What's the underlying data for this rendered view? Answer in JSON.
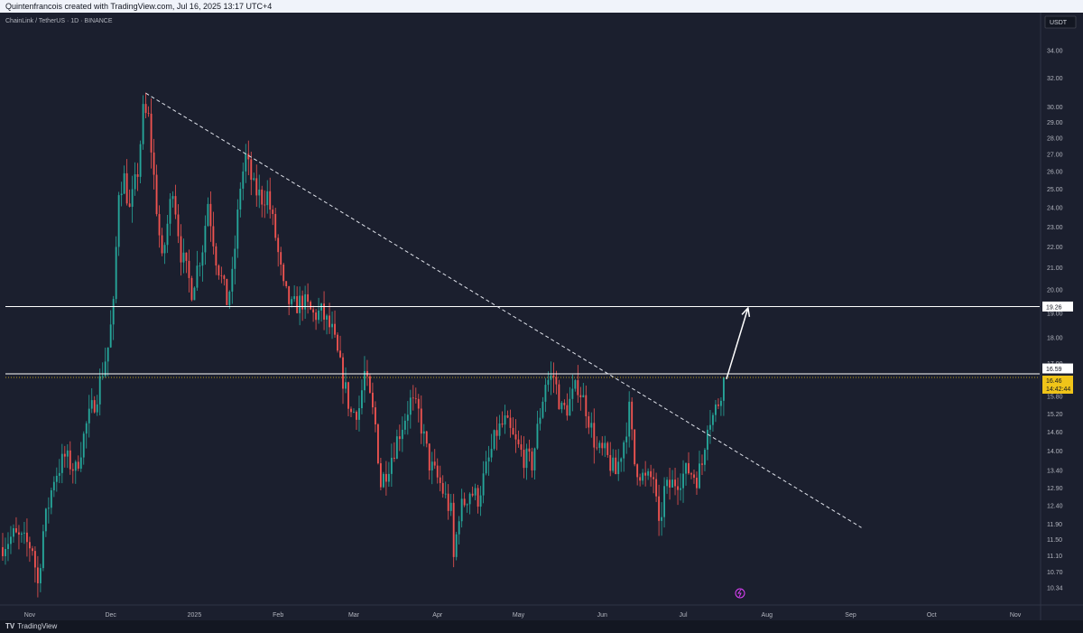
{
  "header": {
    "creator_text": "Quintenfrancois created with TradingView.com, Jul 16, 2025 13:17 UTC+4"
  },
  "symbol_title": "ChainLink / TetherUS · 1D · BINANCE",
  "footer": {
    "logo_mark": "TV",
    "logo_text": "TradingView"
  },
  "colors": {
    "background": "#1b1f2e",
    "up_candle": "#26a69a",
    "down_candle": "#ef5350",
    "price_badge": "#f0c419",
    "line": "#ffffff"
  },
  "chart_data": {
    "type": "candlestick",
    "title": "ChainLink / TetherUS · 1D · BINANCE",
    "currency_label": "USDT",
    "y_scale": "log",
    "ylim": [
      10.0,
      36.5
    ],
    "y_ticks": [
      "34.00",
      "32.00",
      "30.00",
      "29.00",
      "28.00",
      "27.00",
      "26.00",
      "25.00",
      "24.00",
      "23.00",
      "22.00",
      "21.00",
      "20.00",
      "19.00",
      "18.00",
      "17.00",
      "15.80",
      "15.20",
      "14.60",
      "14.00",
      "13.40",
      "12.90",
      "12.40",
      "11.90",
      "11.50",
      "11.10",
      "10.70",
      "10.34"
    ],
    "x_ticks": [
      "Nov",
      "Dec",
      "2025",
      "Feb",
      "Mar",
      "Apr",
      "May",
      "Jun",
      "Jul",
      "Aug",
      "Sep",
      "Oct",
      "Nov"
    ],
    "x_tick_dates": [
      "2024-11-01",
      "2024-12-01",
      "2025-01-01",
      "2025-02-01",
      "2025-03-01",
      "2025-04-01",
      "2025-05-01",
      "2025-06-01",
      "2025-07-01",
      "2025-08-01",
      "2025-09-01",
      "2025-10-01",
      "2025-11-01"
    ],
    "xlim": [
      "2024-10-21",
      "2025-11-10"
    ],
    "price_path": [
      [
        "2024-10-21",
        11.3
      ],
      [
        "2024-10-26",
        11.6
      ],
      [
        "2024-11-02",
        11.3
      ],
      [
        "2024-11-04",
        10.4
      ],
      [
        "2024-11-06",
        11.7
      ],
      [
        "2024-11-10",
        13.2
      ],
      [
        "2024-11-14",
        13.8
      ],
      [
        "2024-11-18",
        13.4
      ],
      [
        "2024-11-22",
        14.8
      ],
      [
        "2024-11-26",
        15.9
      ],
      [
        "2024-11-30",
        17.6
      ],
      [
        "2024-12-02",
        19.2
      ],
      [
        "2024-12-04",
        25.0
      ],
      [
        "2024-12-06",
        25.6
      ],
      [
        "2024-12-08",
        23.8
      ],
      [
        "2024-12-11",
        26.0
      ],
      [
        "2024-12-13",
        29.6
      ],
      [
        "2024-12-15",
        29.2
      ],
      [
        "2024-12-18",
        24.0
      ],
      [
        "2024-12-20",
        21.2
      ],
      [
        "2024-12-24",
        25.2
      ],
      [
        "2024-12-27",
        21.7
      ],
      [
        "2024-12-31",
        20.0
      ],
      [
        "2025-01-04",
        22.0
      ],
      [
        "2025-01-06",
        24.3
      ],
      [
        "2025-01-09",
        21.5
      ],
      [
        "2025-01-13",
        19.5
      ],
      [
        "2025-01-15",
        20.5
      ],
      [
        "2025-01-18",
        25.2
      ],
      [
        "2025-01-20",
        26.8
      ],
      [
        "2025-01-23",
        25.0
      ],
      [
        "2025-01-26",
        24.5
      ],
      [
        "2025-01-28",
        24.7
      ],
      [
        "2025-01-31",
        22.5
      ],
      [
        "2025-02-03",
        20.0
      ],
      [
        "2025-02-06",
        19.2
      ],
      [
        "2025-02-10",
        19.5
      ],
      [
        "2025-02-14",
        18.9
      ],
      [
        "2025-02-17",
        19.0
      ],
      [
        "2025-02-21",
        18.2
      ],
      [
        "2025-02-25",
        16.4
      ],
      [
        "2025-02-28",
        15.2
      ],
      [
        "2025-03-03",
        15.4
      ],
      [
        "2025-03-05",
        16.6
      ],
      [
        "2025-03-09",
        14.8
      ],
      [
        "2025-03-11",
        13.0
      ],
      [
        "2025-03-14",
        13.6
      ],
      [
        "2025-03-18",
        14.6
      ],
      [
        "2025-03-22",
        15.6
      ],
      [
        "2025-03-25",
        15.2
      ],
      [
        "2025-03-29",
        13.6
      ],
      [
        "2025-04-02",
        13.0
      ],
      [
        "2025-04-06",
        12.2
      ],
      [
        "2025-04-07",
        11.0
      ],
      [
        "2025-04-09",
        12.2
      ],
      [
        "2025-04-13",
        12.8
      ],
      [
        "2025-04-16",
        12.6
      ],
      [
        "2025-04-20",
        13.7
      ],
      [
        "2025-04-23",
        14.6
      ],
      [
        "2025-04-26",
        14.9
      ],
      [
        "2025-04-30",
        14.2
      ],
      [
        "2025-05-03",
        13.8
      ],
      [
        "2025-05-06",
        13.6
      ],
      [
        "2025-05-09",
        15.2
      ],
      [
        "2025-05-11",
        16.3
      ],
      [
        "2025-05-14",
        16.5
      ],
      [
        "2025-05-17",
        15.3
      ],
      [
        "2025-05-19",
        15.4
      ],
      [
        "2025-05-23",
        16.2
      ],
      [
        "2025-05-26",
        15.4
      ],
      [
        "2025-05-30",
        14.0
      ],
      [
        "2025-06-02",
        13.9
      ],
      [
        "2025-06-06",
        13.3
      ],
      [
        "2025-06-09",
        14.3
      ],
      [
        "2025-06-11",
        15.3
      ],
      [
        "2025-06-13",
        13.6
      ],
      [
        "2025-06-17",
        13.1
      ],
      [
        "2025-06-20",
        13.2
      ],
      [
        "2025-06-22",
        11.7
      ],
      [
        "2025-06-24",
        12.8
      ],
      [
        "2025-06-27",
        13.0
      ],
      [
        "2025-06-30",
        13.2
      ],
      [
        "2025-07-03",
        13.4
      ],
      [
        "2025-07-06",
        13.2
      ],
      [
        "2025-07-08",
        13.6
      ],
      [
        "2025-07-10",
        15.0
      ],
      [
        "2025-07-12",
        15.1
      ],
      [
        "2025-07-14",
        15.6
      ],
      [
        "2025-07-16",
        16.46
      ]
    ],
    "annotations": {
      "resistance_level": 19.26,
      "resistance_label": "19.26",
      "support_level": 16.59,
      "support_label": "16.59",
      "current_price": 16.46,
      "current_price_label": "16.46",
      "countdown_label": "14:42:44",
      "downtrend_line": {
        "start": [
          "2024-12-14",
          30.9
        ],
        "end": [
          "2025-09-05",
          11.8
        ]
      },
      "projection_arrow": {
        "start": [
          "2025-07-17",
          16.4
        ],
        "end": [
          "2025-07-25",
          19.2
        ]
      }
    }
  }
}
